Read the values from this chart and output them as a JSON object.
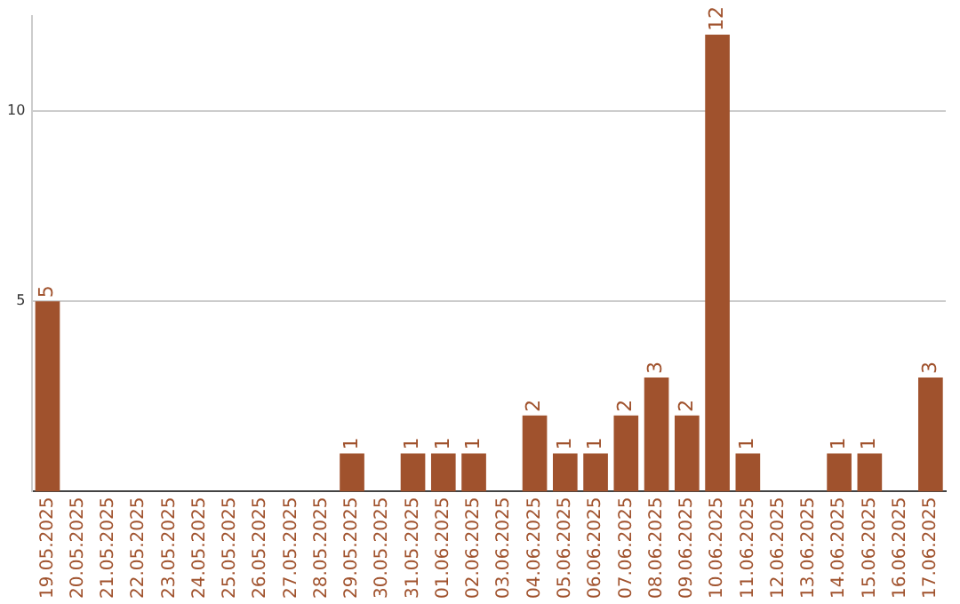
{
  "chart_data": {
    "type": "bar",
    "categories": [
      "19.05.2025",
      "20.05.2025",
      "21.05.2025",
      "22.05.2025",
      "23.05.2025",
      "24.05.2025",
      "25.05.2025",
      "26.05.2025",
      "27.05.2025",
      "28.05.2025",
      "29.05.2025",
      "30.05.2025",
      "31.05.2025",
      "01.06.2025",
      "02.06.2025",
      "03.06.2025",
      "04.06.2025",
      "05.06.2025",
      "06.06.2025",
      "07.06.2025",
      "08.06.2025",
      "09.06.2025",
      "10.06.2025",
      "11.06.2025",
      "12.06.2025",
      "13.06.2025",
      "14.06.2025",
      "15.06.2025",
      "16.06.2025",
      "17.06.2025"
    ],
    "values": [
      5,
      0,
      0,
      0,
      0,
      0,
      0,
      0,
      0,
      0,
      1,
      0,
      1,
      1,
      1,
      0,
      2,
      1,
      1,
      2,
      3,
      2,
      12,
      1,
      0,
      0,
      1,
      1,
      0,
      3
    ],
    "value_labels": [
      "5",
      null,
      null,
      null,
      null,
      null,
      null,
      null,
      null,
      null,
      "1",
      null,
      "1",
      "1",
      "1",
      null,
      "2",
      "1",
      "1",
      "2",
      "3",
      "2",
      "12",
      "1",
      null,
      null,
      "1",
      "1",
      null,
      "3"
    ],
    "color": "#a0522d",
    "ylim": [
      0,
      12.5
    ],
    "yticks": [
      5,
      10
    ],
    "grid": "y",
    "legend": false
  }
}
